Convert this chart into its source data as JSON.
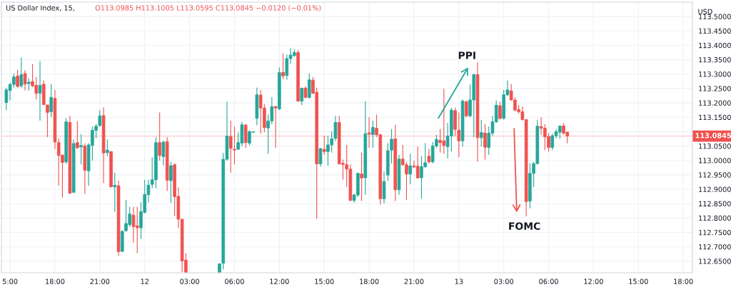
{
  "chart_data": {
    "type": "candlestick",
    "title": "US Dollar Index, 15,",
    "subtitle": "O113.0985 H113.1005 L113.0595 C113.0845 −0.0120 (−0.01%)",
    "ylabel": "USD",
    "categories": [
      null,
      "5:00",
      null,
      null,
      null,
      null,
      null,
      null,
      null,
      null,
      null,
      null,
      null,
      "18:00",
      null,
      null,
      null,
      null,
      null,
      null,
      null,
      null,
      null,
      null,
      null,
      "21:00",
      null,
      null,
      null,
      null,
      null,
      null,
      null,
      null,
      null,
      null,
      null,
      "12",
      null,
      null,
      null,
      null,
      null,
      null,
      null,
      null,
      null,
      null,
      null,
      "03:00",
      null,
      null,
      null,
      null,
      null,
      null,
      null,
      null,
      null,
      null,
      null,
      "06:00",
      null,
      null,
      null,
      null,
      null,
      null,
      null,
      null,
      null,
      null,
      null,
      "12:00",
      null,
      null,
      null,
      null,
      null,
      null,
      null,
      null,
      null,
      null,
      null,
      "15:00",
      null,
      null,
      null,
      null,
      null,
      null,
      null,
      null,
      null,
      null,
      null,
      "18:00",
      null,
      null,
      null,
      null,
      null,
      null,
      null,
      null,
      null,
      null,
      null,
      "21:00",
      null,
      null,
      null,
      null,
      null,
      null,
      null,
      null,
      null,
      null,
      null,
      "13",
      null,
      null,
      null,
      null,
      null,
      null,
      null,
      null,
      null,
      null,
      null,
      "03:00",
      null,
      null,
      null,
      null,
      null,
      null,
      null,
      null,
      null,
      null,
      null,
      "06:00",
      null,
      null,
      null,
      null,
      null,
      null,
      null,
      null,
      null,
      null,
      null,
      "12:00",
      null,
      null,
      null,
      null,
      null,
      null,
      null,
      null,
      null,
      null,
      null,
      "15:00",
      null,
      null,
      null,
      null,
      null,
      null,
      null,
      null,
      null,
      null,
      null,
      "18:00",
      null,
      null
    ],
    "ohlc": [
      [
        113.201,
        113.253,
        113.175,
        113.245
      ],
      [
        113.243,
        113.27,
        113.208,
        113.264
      ],
      [
        113.264,
        113.302,
        113.253,
        113.29
      ],
      [
        113.293,
        113.315,
        113.253,
        113.257
      ],
      [
        113.259,
        113.357,
        113.253,
        113.298
      ],
      [
        113.302,
        113.313,
        113.243,
        113.265
      ],
      [
        113.267,
        113.286,
        113.243,
        113.272
      ],
      [
        113.274,
        113.335,
        113.255,
        113.259
      ],
      [
        113.261,
        113.29,
        113.212,
        113.233
      ],
      [
        113.233,
        113.345,
        113.138,
        113.261
      ],
      [
        113.265,
        113.278,
        113.192,
        113.194
      ],
      [
        113.193,
        113.193,
        113.081,
        113.167
      ],
      [
        113.169,
        113.265,
        113.15,
        113.219
      ],
      [
        113.216,
        113.245,
        113.04,
        113.064
      ],
      [
        113.062,
        113.077,
        112.912,
        113.017
      ],
      [
        113.019,
        113.019,
        112.871,
        112.993
      ],
      [
        112.995,
        113.146,
        112.988,
        113.134
      ],
      [
        113.132,
        113.155,
        112.884,
        112.886
      ],
      [
        112.889,
        113.073,
        112.888,
        113.059
      ],
      [
        113.062,
        113.136,
        113.04,
        113.044
      ],
      [
        113.047,
        113.091,
        112.986,
        113.052
      ],
      [
        113.05,
        113.06,
        112.884,
        112.966
      ],
      [
        112.964,
        113.06,
        112.912,
        113.054
      ],
      [
        113.052,
        113.118,
        112.999,
        113.105
      ],
      [
        113.105,
        113.126,
        113.077,
        113.119
      ],
      [
        113.121,
        113.175,
        113.118,
        113.155
      ],
      [
        113.156,
        113.185,
        112.921,
        113.026
      ],
      [
        113.027,
        113.073,
        113.015,
        113.036
      ],
      [
        113.031,
        113.031,
        112.907,
        112.908
      ],
      [
        112.908,
        112.958,
        112.822,
        112.914
      ],
      [
        112.912,
        112.929,
        112.669,
        112.683
      ],
      [
        112.684,
        112.756,
        112.683,
        112.754
      ],
      [
        112.756,
        112.863,
        112.752,
        112.781
      ],
      [
        112.777,
        112.839,
        112.769,
        112.814
      ],
      [
        112.81,
        112.839,
        112.715,
        112.77
      ],
      [
        112.773,
        112.839,
        112.678,
        112.766
      ],
      [
        112.766,
        112.855,
        112.728,
        112.822
      ],
      [
        112.82,
        112.933,
        112.816,
        112.882
      ],
      [
        112.881,
        112.933,
        112.855,
        112.914
      ],
      [
        112.917,
        113.011,
        112.904,
        112.933
      ],
      [
        112.933,
        113.081,
        112.904,
        113.062
      ],
      [
        113.062,
        113.167,
        112.999,
        113.017
      ],
      [
        113.013,
        113.068,
        112.982,
        113.064
      ],
      [
        113.065,
        113.081,
        112.894,
        112.931
      ],
      [
        112.93,
        112.995,
        112.853,
        112.982
      ],
      [
        112.985,
        112.99,
        112.806,
        112.874
      ],
      [
        112.875,
        112.906,
        112.765,
        112.796
      ],
      [
        112.796,
        112.796,
        112.613,
        112.651
      ],
      [
        112.654,
        112.678,
        112.611,
        112.612
      ],
      null,
      null,
      null,
      null,
      null,
      null,
      null,
      null,
      [
        112.612,
        112.641,
        112.611,
        112.641
      ],
      [
        112.643,
        113.026,
        112.621,
        113.004
      ],
      [
        113.004,
        113.204,
        112.999,
        113.085
      ],
      [
        113.083,
        113.138,
        112.958,
        113.042
      ],
      [
        113.039,
        113.118,
        112.986,
        113.036
      ],
      [
        113.039,
        113.097,
        113.036,
        113.062
      ],
      [
        113.06,
        113.134,
        113.048,
        113.124
      ],
      [
        113.123,
        113.126,
        113.044,
        113.062
      ],
      [
        113.06,
        113.105,
        113.052,
        113.1
      ],
      [
        113.098,
        113.101,
        113.097,
        113.1
      ],
      [
        113.146,
        113.253,
        113.122,
        113.228
      ],
      [
        113.227,
        113.245,
        113.093,
        113.182
      ],
      [
        113.182,
        113.196,
        113.097,
        113.114
      ],
      [
        113.113,
        113.159,
        113.023,
        113.137
      ],
      [
        113.137,
        113.22,
        113.126,
        113.187
      ],
      [
        113.187,
        113.19,
        113.044,
        113.182
      ],
      [
        113.179,
        113.323,
        113.175,
        113.305
      ],
      [
        113.306,
        113.372,
        113.282,
        113.294
      ],
      [
        113.295,
        113.368,
        113.28,
        113.354
      ],
      [
        113.354,
        113.39,
        113.335,
        113.366
      ],
      [
        113.364,
        113.387,
        113.36,
        113.375
      ],
      [
        113.375,
        113.384,
        113.204,
        113.206
      ],
      [
        113.206,
        113.253,
        113.192,
        113.251
      ],
      [
        113.251,
        113.257,
        113.216,
        113.219
      ],
      [
        113.219,
        113.302,
        113.215,
        113.28
      ],
      [
        113.279,
        113.29,
        113.231,
        113.233
      ],
      [
        113.237,
        113.253,
        112.797,
        112.988
      ],
      [
        112.988,
        113.044,
        112.978,
        113.041
      ],
      [
        113.039,
        113.086,
        113.019,
        113.031
      ],
      [
        113.031,
        113.085,
        112.982,
        113.054
      ],
      [
        113.054,
        113.101,
        113.027,
        113.075
      ],
      [
        113.077,
        113.155,
        113.068,
        113.132
      ],
      [
        113.132,
        113.155,
        112.986,
        112.988
      ],
      [
        112.99,
        113.003,
        112.933,
        112.986
      ],
      [
        112.985,
        113.054,
        112.908,
        112.97
      ],
      [
        112.97,
        112.986,
        112.859,
        112.861
      ],
      [
        112.861,
        112.884,
        112.853,
        112.88
      ],
      [
        112.88,
        112.958,
        112.873,
        112.955
      ],
      [
        112.953,
        113.027,
        112.859,
        112.939
      ],
      [
        112.94,
        113.206,
        112.88,
        113.093
      ],
      [
        113.096,
        113.15,
        113.044,
        113.091
      ],
      [
        113.09,
        113.138,
        113.044,
        113.115
      ],
      [
        113.112,
        113.159,
        113.081,
        113.089
      ],
      [
        113.089,
        113.093,
        112.847,
        112.867
      ],
      [
        112.867,
        112.962,
        112.851,
        112.927
      ],
      [
        112.949,
        113.06,
        112.929,
        113.034
      ],
      [
        113.036,
        113.109,
        112.99,
        113.074
      ],
      [
        113.075,
        113.124,
        112.859,
        112.898
      ],
      [
        112.898,
        113.019,
        112.88,
        113.005
      ],
      [
        113.005,
        113.054,
        112.982,
        112.985
      ],
      [
        112.985,
        112.995,
        112.863,
        112.953
      ],
      [
        112.953,
        113.023,
        112.917,
        112.981
      ],
      [
        112.981,
        112.999,
        112.974,
        112.977
      ],
      [
        112.98,
        113.048,
        112.937,
        112.939
      ],
      [
        112.94,
        113.015,
        112.867,
        112.978
      ],
      [
        112.978,
        113.06,
        112.974,
        112.992
      ],
      [
        113.015,
        113.04,
        112.99,
        112.995
      ],
      [
        112.995,
        113.064,
        112.99,
        113.05
      ],
      [
        113.05,
        113.089,
        113.044,
        113.073
      ],
      [
        113.07,
        113.109,
        113.027,
        113.062
      ],
      [
        113.068,
        113.249,
        113.023,
        113.052
      ],
      [
        113.048,
        113.13,
        113.007,
        113.085
      ],
      [
        113.085,
        113.183,
        113.031,
        113.175
      ],
      [
        113.173,
        113.183,
        113.085,
        113.108
      ],
      [
        113.105,
        113.167,
        113.011,
        113.068
      ],
      [
        113.068,
        113.212,
        113.048,
        113.206
      ],
      [
        113.204,
        113.208,
        113.15,
        113.155
      ],
      [
        113.155,
        113.264,
        113.15,
        113.21
      ],
      [
        113.21,
        113.302,
        113.081,
        113.298
      ],
      [
        113.298,
        113.341,
        112.995,
        113.079
      ],
      [
        113.079,
        113.141,
        113.048,
        113.097
      ],
      [
        113.095,
        113.126,
        113.003,
        113.046
      ],
      [
        113.045,
        113.118,
        113.019,
        113.095
      ],
      [
        113.095,
        113.155,
        113.085,
        113.134
      ],
      [
        113.134,
        113.208,
        113.13,
        113.192
      ],
      [
        113.19,
        113.204,
        113.142,
        113.146
      ],
      [
        113.146,
        113.245,
        113.142,
        113.228
      ],
      [
        113.228,
        113.278,
        113.224,
        113.245
      ],
      [
        113.242,
        113.265,
        113.208,
        113.21
      ],
      [
        113.21,
        113.22,
        113.171,
        113.175
      ],
      [
        113.177,
        113.192,
        113.163,
        113.169
      ],
      [
        113.169,
        113.187,
        113.138,
        113.142
      ],
      [
        113.142,
        113.144,
        112.806,
        112.857
      ],
      [
        112.859,
        112.99,
        112.834,
        112.955
      ],
      [
        112.955,
        112.995,
        112.907,
        112.989
      ],
      [
        112.989,
        113.141,
        112.986,
        113.119
      ],
      [
        113.118,
        113.15,
        113.089,
        113.112
      ],
      [
        113.112,
        113.126,
        113.036,
        113.082
      ],
      [
        113.083,
        113.095,
        113.031,
        113.045
      ],
      [
        113.045,
        113.093,
        113.036,
        113.086
      ],
      [
        113.085,
        113.109,
        113.077,
        113.1
      ],
      [
        113.098,
        113.122,
        113.075,
        113.119
      ],
      [
        113.12,
        113.13,
        113.089,
        113.095
      ],
      [
        113.0985,
        113.1005,
        113.0595,
        113.0845
      ],
      null,
      null,
      null,
      null,
      null,
      null,
      null,
      null,
      null,
      null,
      null,
      null,
      null,
      null,
      null,
      null,
      null,
      null,
      null,
      null,
      null,
      null,
      null,
      null,
      null,
      null,
      null,
      null,
      null,
      null,
      null,
      null,
      null
    ],
    "colors": [
      "#26a69a",
      "#26a69a",
      "#26a69a",
      "#ef5350",
      "#26a69a",
      "#ef5350",
      "#26a69a",
      "#ef5350",
      "#ef5350",
      "#26a69a",
      "#ef5350",
      "#ef5350",
      "#26a69a",
      "#ef5350",
      "#ef5350",
      "#ef5350",
      "#26a69a",
      "#ef5350",
      "#26a69a",
      "#ef5350",
      "#26a69a",
      "#ef5350",
      "#26a69a",
      "#26a69a",
      "#26a69a",
      "#26a69a",
      "#ef5350",
      "#26a69a",
      "#ef5350",
      "#26a69a",
      "#ef5350",
      "#26a69a",
      "#26a69a",
      "#26a69a",
      "#ef5350",
      "#ef5350",
      "#26a69a",
      "#26a69a",
      "#26a69a",
      "#26a69a",
      "#26a69a",
      "#ef5350",
      "#26a69a",
      "#ef5350",
      "#26a69a",
      "#ef5350",
      "#ef5350",
      "#ef5350",
      "#ef5350",
      null,
      null,
      null,
      null,
      null,
      null,
      null,
      null,
      "#26a69a",
      "#26a69a",
      "#26a69a",
      "#ef5350",
      "#ef5350",
      "#26a69a",
      "#26a69a",
      "#ef5350",
      "#26a69a",
      "#26a69a",
      "#26a69a",
      "#ef5350",
      "#ef5350",
      "#26a69a",
      "#26a69a",
      "#ef5350",
      "#26a69a",
      "#ef5350",
      "#26a69a",
      "#26a69a",
      "#26a69a",
      "#ef5350",
      "#26a69a",
      "#ef5350",
      "#26a69a",
      "#ef5350",
      "#ef5350",
      "#26a69a",
      "#ef5350",
      "#26a69a",
      "#26a69a",
      "#26a69a",
      "#ef5350",
      "#ef5350",
      "#ef5350",
      "#ef5350",
      "#26a69a",
      "#26a69a",
      "#ef5350",
      "#26a69a",
      "#ef5350",
      "#26a69a",
      "#ef5350",
      "#ef5350",
      "#26a69a",
      "#26a69a",
      "#26a69a",
      "#ef5350",
      "#26a69a",
      "#ef5350",
      "#ef5350",
      "#26a69a",
      "#ef5350",
      "#ef5350",
      "#26a69a",
      "#26a69a",
      "#ef5350",
      "#26a69a",
      "#26a69a",
      "#ef5350",
      "#ef5350",
      "#26a69a",
      "#26a69a",
      "#ef5350",
      "#ef5350",
      "#26a69a",
      "#ef5350",
      "#26a69a",
      "#26a69a",
      "#ef5350",
      "#26a69a",
      "#ef5350",
      "#26a69a",
      "#26a69a",
      "#26a69a",
      "#ef5350",
      "#26a69a",
      "#26a69a",
      "#ef5350",
      "#ef5350",
      "#ef5350",
      "#ef5350",
      "#ef5350",
      "#26a69a",
      "#26a69a",
      "#26a69a",
      "#ef5350",
      "#ef5350",
      "#ef5350",
      "#26a69a",
      "#26a69a",
      "#26a69a",
      "#ef5350",
      "#ef5350",
      null,
      null,
      null,
      null,
      null,
      null,
      null,
      null,
      null,
      null,
      null,
      null,
      null,
      null,
      null,
      null,
      null,
      null,
      null,
      null,
      null,
      null,
      null,
      null,
      null,
      null,
      null,
      null,
      null,
      null,
      null,
      null,
      null
    ],
    "ylim": [
      112.61,
      113.55
    ],
    "yticks": [
      {
        "value": 112.65,
        "label": "112.6500"
      },
      {
        "value": 112.7,
        "label": "112.7000"
      },
      {
        "value": 112.75,
        "label": "112.7500"
      },
      {
        "value": 112.8,
        "label": "112.8000"
      },
      {
        "value": 112.85,
        "label": "112.8500"
      },
      {
        "value": 112.9,
        "label": "112.9000"
      },
      {
        "value": 112.95,
        "label": "112.9500"
      },
      {
        "value": 113.0,
        "label": "113.0000"
      },
      {
        "value": 113.05,
        "label": "113.0500"
      },
      {
        "value": 113.1,
        "label": null
      },
      {
        "value": 113.15,
        "label": "113.1500"
      },
      {
        "value": 113.2,
        "label": "113.2000"
      },
      {
        "value": 113.25,
        "label": "113.2500"
      },
      {
        "value": 113.3,
        "label": "113.3000"
      },
      {
        "value": 113.35,
        "label": "113.3500"
      },
      {
        "value": 113.4,
        "label": "113.4000"
      },
      {
        "value": 113.45,
        "label": "113.4500"
      },
      {
        "value": 113.5,
        "label": "113.5000"
      }
    ],
    "ref_lines": [
      {
        "axis": "y",
        "value": 113.0845,
        "label": "113.0845",
        "color": "#ef5350",
        "line_style": "dotted"
      }
    ],
    "annotations": [
      "PPI",
      "FOMC"
    ],
    "grid": true,
    "legend": false
  }
}
